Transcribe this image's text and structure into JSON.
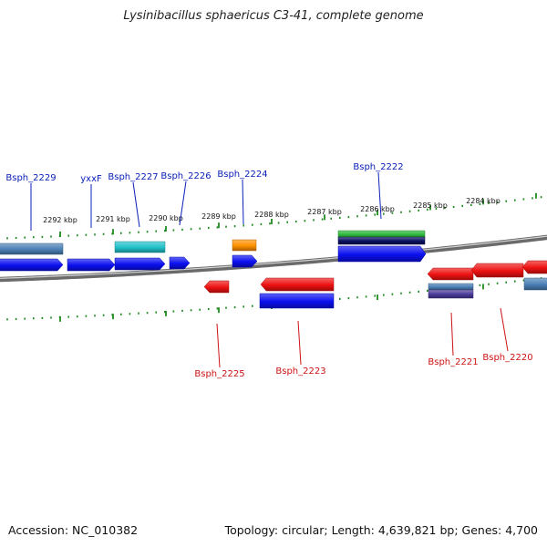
{
  "title": "Lysinibacillus sphaericus C3-41, complete genome",
  "footer": {
    "accession": "Accession: NC_010382",
    "topology": "Topology: circular; Length: 4,639,821 bp; Genes: 4,700"
  },
  "colors": {
    "blue": "#0a0ff0",
    "red": "#ee1111",
    "steel": "#4a7fb5",
    "cyan": "#20c0c8",
    "orange": "#ff9000",
    "green": "#2cb83a",
    "navy": "#0a1060",
    "purple": "#4a3a9a",
    "tick": "#1f8a1f",
    "backbone": "#8a8a8a"
  },
  "scale_labels": [
    "2292 kbp",
    "2291 kbp",
    "2290 kbp",
    "2289 kbp",
    "2288 kbp",
    "2287 kbp",
    "2286 kbp",
    "2285 kbp",
    "2284 kbp"
  ],
  "labels_top": [
    "Bsph_2229",
    "yxxF",
    "Bsph_2227",
    "Bsph_2226",
    "Bsph_2224",
    "Bsph_2222"
  ],
  "labels_bottom": [
    "Bsph_2225",
    "Bsph_2223",
    "Bsph_2221",
    "Bsph_2220"
  ]
}
